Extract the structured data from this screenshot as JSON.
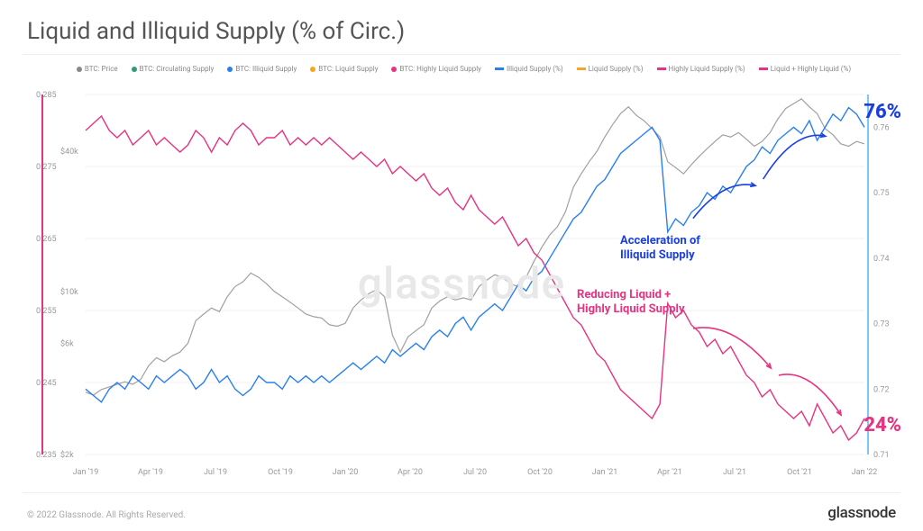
{
  "title": "Liquid and Illiquid Supply (% of Circ.)",
  "watermark": "glassnode",
  "footer_copyright": "© 2022 Glassnode. All Rights Reserved.",
  "footer_brand": "glassnode",
  "legend": [
    {
      "label": "BTC: Price",
      "color": "#888888",
      "kind": "dot"
    },
    {
      "label": "BTC: Circulating Supply",
      "color": "#2e9e6f",
      "kind": "dot"
    },
    {
      "label": "BTC: Illiquid Supply",
      "color": "#2a7ff0",
      "kind": "dot"
    },
    {
      "label": "BTC: Liquid Supply",
      "color": "#f5a623",
      "kind": "dot"
    },
    {
      "label": "BTC: Highly Liquid Supply",
      "color": "#e63482",
      "kind": "dot"
    },
    {
      "label": "Illiquid Supply (%)",
      "color": "#2a7ff0",
      "kind": "bar"
    },
    {
      "label": "Liquid Supply (%)",
      "color": "#f5a623",
      "kind": "bar"
    },
    {
      "label": "Highly Liquid Supply (%)",
      "color": "#e63482",
      "kind": "bar"
    },
    {
      "label": "Liquid + Highly Liquid (%)",
      "color": "#e63482",
      "kind": "bar"
    }
  ],
  "y_left_labels": [
    "0.285",
    "0.275",
    "0.265",
    "0.255",
    "0.245",
    "0.235"
  ],
  "y_price_labels": [
    "$40k",
    "$10k",
    "$6k",
    "$2k"
  ],
  "y_right_labels": [
    "0.76",
    "0.75",
    "0.74",
    "0.73",
    "0.72",
    "0.71"
  ],
  "x_labels": [
    "Jan '19",
    "Apr '19",
    "Jul '19",
    "Oct '19",
    "Jan '20",
    "Apr '20",
    "Jul '20",
    "Oct '20",
    "Jan '21",
    "Apr '21",
    "Jul '21",
    "Oct '21",
    "Jan '22"
  ],
  "colors": {
    "grid": "#f0f0f0",
    "axis_text": "#999999",
    "price": "#a0a0a0",
    "illiquid": "#2a7ff0",
    "liquid": "#e63482",
    "blue_accent": "#1a3fe0",
    "pink_accent": "#e63482",
    "right_axis_line": "#7ec8f7"
  },
  "annotations": {
    "blue_pct": "76%",
    "pink_pct": "24%",
    "blue_text": "Acceleration of\nIlliquid Supply",
    "pink_text": "Reducing Liquid +\nHighly Liquid Supply"
  },
  "series": {
    "illiquid": [
      0.72,
      0.719,
      0.718,
      0.72,
      0.721,
      0.72,
      0.722,
      0.721,
      0.72,
      0.722,
      0.721,
      0.722,
      0.723,
      0.722,
      0.72,
      0.721,
      0.723,
      0.721,
      0.722,
      0.72,
      0.719,
      0.72,
      0.722,
      0.721,
      0.721,
      0.72,
      0.722,
      0.721,
      0.722,
      0.721,
      0.722,
      0.721,
      0.722,
      0.723,
      0.724,
      0.723,
      0.724,
      0.725,
      0.724,
      0.726,
      0.725,
      0.726,
      0.727,
      0.726,
      0.728,
      0.729,
      0.728,
      0.73,
      0.731,
      0.729,
      0.731,
      0.732,
      0.733,
      0.732,
      0.734,
      0.736,
      0.735,
      0.737,
      0.738,
      0.74,
      0.742,
      0.744,
      0.746,
      0.747,
      0.749,
      0.751,
      0.752,
      0.754,
      0.756,
      0.757,
      0.758,
      0.759,
      0.76,
      0.758,
      0.744,
      0.746,
      0.745,
      0.747,
      0.748,
      0.75,
      0.749,
      0.751,
      0.75,
      0.752,
      0.754,
      0.755,
      0.757,
      0.756,
      0.758,
      0.759,
      0.76,
      0.759,
      0.761,
      0.758,
      0.76,
      0.762,
      0.761,
      0.763,
      0.762,
      0.76
    ],
    "liquid": [
      0.28,
      0.281,
      0.282,
      0.28,
      0.279,
      0.28,
      0.278,
      0.279,
      0.28,
      0.278,
      0.279,
      0.278,
      0.277,
      0.278,
      0.28,
      0.279,
      0.277,
      0.279,
      0.278,
      0.28,
      0.281,
      0.28,
      0.278,
      0.279,
      0.279,
      0.28,
      0.278,
      0.279,
      0.278,
      0.279,
      0.278,
      0.279,
      0.278,
      0.277,
      0.276,
      0.277,
      0.276,
      0.275,
      0.276,
      0.274,
      0.275,
      0.274,
      0.273,
      0.274,
      0.272,
      0.271,
      0.272,
      0.27,
      0.269,
      0.271,
      0.269,
      0.268,
      0.267,
      0.268,
      0.266,
      0.264,
      0.265,
      0.263,
      0.262,
      0.26,
      0.258,
      0.256,
      0.254,
      0.253,
      0.251,
      0.249,
      0.248,
      0.246,
      0.244,
      0.243,
      0.242,
      0.241,
      0.24,
      0.242,
      0.256,
      0.254,
      0.255,
      0.253,
      0.252,
      0.25,
      0.251,
      0.249,
      0.25,
      0.248,
      0.246,
      0.245,
      0.243,
      0.244,
      0.242,
      0.241,
      0.24,
      0.241,
      0.239,
      0.242,
      0.24,
      0.238,
      0.239,
      0.237,
      0.238,
      0.24
    ],
    "price": [
      3700,
      3600,
      3800,
      3900,
      4000,
      4100,
      4000,
      4200,
      4800,
      5200,
      5000,
      5300,
      5500,
      6000,
      7500,
      8000,
      8500,
      8200,
      9500,
      10500,
      11000,
      12000,
      11500,
      10800,
      10000,
      9500,
      9000,
      8500,
      8000,
      7800,
      7700,
      7200,
      7100,
      7300,
      8500,
      9200,
      9800,
      10200,
      9500,
      6500,
      5500,
      6400,
      6800,
      7200,
      8500,
      9100,
      9500,
      9200,
      9400,
      9200,
      10500,
      11200,
      11800,
      11500,
      10800,
      10500,
      11500,
      13500,
      15500,
      17500,
      19000,
      22000,
      28000,
      32000,
      36000,
      40000,
      46000,
      52000,
      58000,
      62000,
      57000,
      54000,
      50000,
      46000,
      36000,
      34000,
      32000,
      35000,
      38000,
      41000,
      44000,
      47000,
      46000,
      48000,
      45000,
      42000,
      44000,
      48000,
      55000,
      61000,
      64000,
      67000,
      62000,
      58000,
      50000,
      47000,
      43000,
      42000,
      44000,
      43000
    ]
  },
  "axes": {
    "left_min": 0.235,
    "left_max": 0.285,
    "right_min": 0.71,
    "right_max": 0.765,
    "price_log_min": 2000,
    "price_log_max": 70000
  }
}
